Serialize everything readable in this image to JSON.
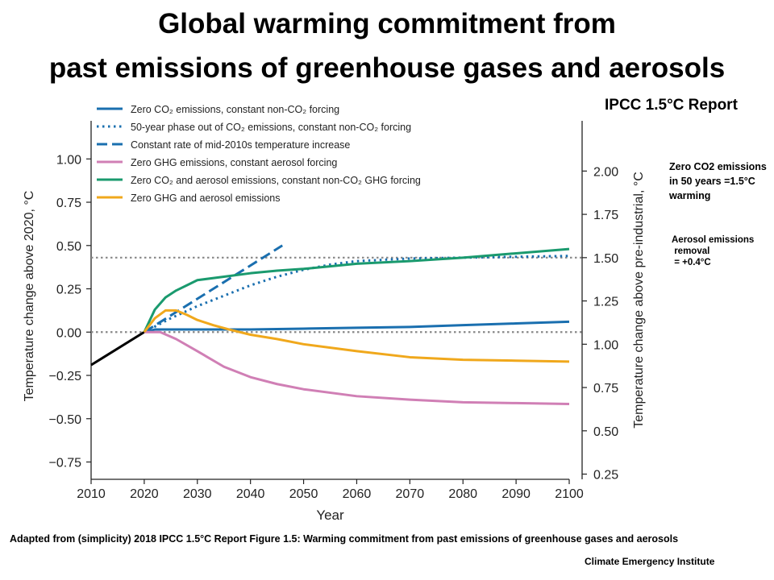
{
  "page": {
    "title_line1": "Global warming commitment from",
    "title_line2": "past emissions of greenhouse gases and aerosols",
    "report_label": "IPCC 1.5°C Report",
    "note_zero_co2": "Zero CO2 emissions in 50 years =1.5°C warming",
    "note_aerosol": "Aerosol emissions\n removal\n = +0.4°C",
    "caption": "Adapted from (simplicity) 2018 IPCC 1.5°C  Report Figure 1.5: Warming commitment from past emissions of greenhouse gases and aerosols",
    "credit": "Climate Emergency Institute"
  },
  "chart_data": {
    "type": "line",
    "xlabel": "Year",
    "ylabel": "Temperature change above 2020, °C",
    "ylabel_right": "Temperature change above pre-industrial, °C",
    "xlim": [
      2010,
      2100
    ],
    "ylim": [
      -0.85,
      1.22
    ],
    "ylim_right": [
      0.22,
      2.29
    ],
    "xticks": [
      2010,
      2020,
      2030,
      2040,
      2050,
      2060,
      2070,
      2080,
      2090,
      2100
    ],
    "yticks": [
      "-0.75",
      "-0.50",
      "-0.25",
      "0.00",
      "0.25",
      "0.50",
      "0.75",
      "1.00"
    ],
    "yticks_right": [
      "0.25",
      "0.50",
      "0.75",
      "1.00",
      "1.25",
      "1.50",
      "1.75",
      "2.00"
    ],
    "reference_lines_right_axis": [
      1.07,
      1.5
    ],
    "legend_position": "top-left",
    "historical": {
      "color": "#000000",
      "x": [
        2010,
        2020
      ],
      "y": [
        -0.19,
        0.0
      ]
    },
    "series": [
      {
        "name": "Zero CO₂ emissions, constant non-CO₂ forcing",
        "color": "#1a6faf",
        "style": "solid",
        "x": [
          2020,
          2022,
          2030,
          2040,
          2050,
          2060,
          2070,
          2080,
          2090,
          2100
        ],
        "y": [
          0.0,
          0.015,
          0.015,
          0.015,
          0.02,
          0.025,
          0.03,
          0.04,
          0.05,
          0.06
        ]
      },
      {
        "name": "50-year phase out of CO₂ emissions, constant non-CO₂ forcing",
        "color": "#1a6faf",
        "style": "dotted",
        "x": [
          2020,
          2025,
          2030,
          2035,
          2040,
          2045,
          2050,
          2055,
          2060,
          2070,
          2080,
          2090,
          2100
        ],
        "y": [
          0.0,
          0.08,
          0.15,
          0.21,
          0.27,
          0.32,
          0.36,
          0.39,
          0.41,
          0.425,
          0.43,
          0.435,
          0.44
        ]
      },
      {
        "name": "Constant rate of mid-2010s temperature increase",
        "color": "#1a6faf",
        "style": "dashed",
        "x": [
          2020,
          2046
        ],
        "y": [
          0.0,
          0.5
        ]
      },
      {
        "name": "Zero GHG emissions, constant aerosol forcing",
        "color": "#d07fb5",
        "style": "solid",
        "x": [
          2020,
          2023,
          2026,
          2030,
          2035,
          2040,
          2045,
          2050,
          2060,
          2070,
          2080,
          2090,
          2100
        ],
        "y": [
          0.0,
          0.0,
          -0.04,
          -0.11,
          -0.2,
          -0.26,
          -0.3,
          -0.33,
          -0.37,
          -0.39,
          -0.405,
          -0.41,
          -0.415
        ]
      },
      {
        "name": "Zero CO₂ and aerosol emissions, constant non-CO₂ GHG forcing",
        "color": "#1a9a6e",
        "style": "solid",
        "x": [
          2020,
          2022,
          2024,
          2026,
          2028,
          2030,
          2035,
          2040,
          2045,
          2050,
          2055,
          2060,
          2070,
          2080,
          2090,
          2100
        ],
        "y": [
          0.0,
          0.13,
          0.2,
          0.24,
          0.27,
          0.3,
          0.32,
          0.34,
          0.355,
          0.365,
          0.38,
          0.395,
          0.41,
          0.43,
          0.455,
          0.48
        ]
      },
      {
        "name": "Zero GHG and aerosol emissions",
        "color": "#f0a81c",
        "style": "solid",
        "x": [
          2020,
          2022,
          2024,
          2026,
          2028,
          2030,
          2033,
          2036,
          2040,
          2045,
          2050,
          2060,
          2070,
          2080,
          2090,
          2100
        ],
        "y": [
          0.0,
          0.08,
          0.125,
          0.125,
          0.1,
          0.07,
          0.04,
          0.015,
          -0.015,
          -0.04,
          -0.07,
          -0.11,
          -0.145,
          -0.16,
          -0.165,
          -0.17
        ]
      }
    ]
  }
}
